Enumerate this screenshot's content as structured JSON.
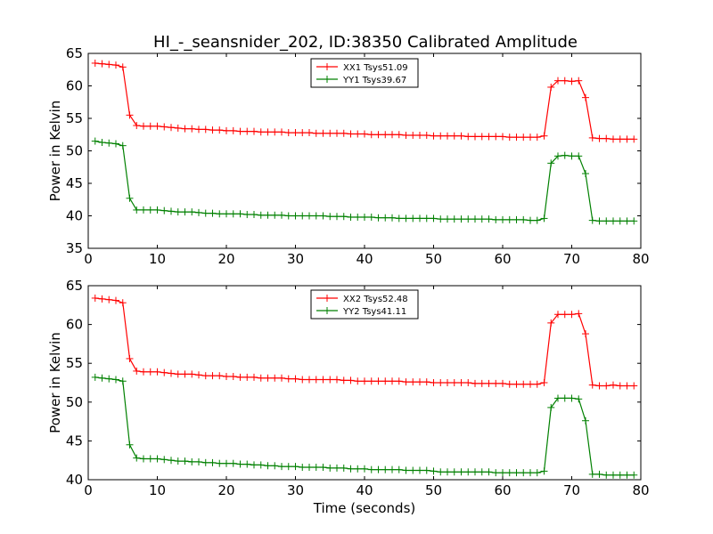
{
  "title": "HI_-_seansnider_202, ID:38350 Calibrated Amplitude",
  "chart_data": [
    {
      "type": "line",
      "xlabel": "",
      "ylabel": "Power in Kelvin",
      "xlim": [
        0,
        80
      ],
      "ylim": [
        35,
        65
      ],
      "xticks": [
        "0",
        "10",
        "20",
        "30",
        "40",
        "50",
        "60",
        "70",
        "80"
      ],
      "yticks": [
        "35",
        "40",
        "45",
        "50",
        "55",
        "60",
        "65"
      ],
      "legend_position": "top-center",
      "x": [
        1,
        2,
        3,
        4,
        5,
        6,
        7,
        8,
        9,
        10,
        11,
        12,
        13,
        14,
        15,
        16,
        17,
        18,
        19,
        20,
        21,
        22,
        23,
        24,
        25,
        26,
        27,
        28,
        29,
        30,
        31,
        32,
        33,
        34,
        35,
        36,
        37,
        38,
        39,
        40,
        41,
        42,
        43,
        44,
        45,
        46,
        47,
        48,
        49,
        50,
        51,
        52,
        53,
        54,
        55,
        56,
        57,
        58,
        59,
        60,
        61,
        62,
        63,
        64,
        65,
        66,
        67,
        68,
        69,
        70,
        71,
        72,
        73,
        74,
        75,
        76,
        77,
        78,
        79
      ],
      "series": [
        {
          "name": "XX1 Tsys51.09",
          "color": "#ff0000",
          "values": [
            63.5,
            63.4,
            63.3,
            63.2,
            62.9,
            55.5,
            53.9,
            53.8,
            53.8,
            53.8,
            53.7,
            53.6,
            53.5,
            53.4,
            53.4,
            53.3,
            53.3,
            53.2,
            53.2,
            53.1,
            53.1,
            53.0,
            53.0,
            53.0,
            52.9,
            52.9,
            52.9,
            52.9,
            52.8,
            52.8,
            52.8,
            52.8,
            52.7,
            52.7,
            52.7,
            52.7,
            52.7,
            52.6,
            52.6,
            52.6,
            52.5,
            52.5,
            52.5,
            52.5,
            52.5,
            52.4,
            52.4,
            52.4,
            52.4,
            52.3,
            52.3,
            52.3,
            52.3,
            52.3,
            52.2,
            52.2,
            52.2,
            52.2,
            52.2,
            52.2,
            52.1,
            52.1,
            52.1,
            52.1,
            52.1,
            52.3,
            59.8,
            60.8,
            60.8,
            60.7,
            60.8,
            58.2,
            52.0,
            51.9,
            51.9,
            51.8,
            51.8,
            51.8,
            51.8
          ]
        },
        {
          "name": "YY1 Tsys39.67",
          "color": "#008000",
          "values": [
            51.5,
            51.3,
            51.2,
            51.1,
            50.8,
            42.7,
            40.9,
            40.9,
            40.9,
            40.9,
            40.8,
            40.7,
            40.6,
            40.6,
            40.6,
            40.5,
            40.4,
            40.4,
            40.3,
            40.3,
            40.3,
            40.3,
            40.2,
            40.2,
            40.1,
            40.1,
            40.1,
            40.1,
            40.0,
            40.0,
            40.0,
            40.0,
            40.0,
            40.0,
            39.9,
            39.9,
            39.9,
            39.8,
            39.8,
            39.8,
            39.8,
            39.7,
            39.7,
            39.7,
            39.6,
            39.6,
            39.6,
            39.6,
            39.6,
            39.6,
            39.5,
            39.5,
            39.5,
            39.5,
            39.5,
            39.5,
            39.5,
            39.5,
            39.4,
            39.4,
            39.4,
            39.4,
            39.4,
            39.3,
            39.3,
            39.6,
            48.1,
            49.2,
            49.3,
            49.2,
            49.2,
            46.5,
            39.3,
            39.2,
            39.2,
            39.2,
            39.2,
            39.2,
            39.2
          ]
        }
      ]
    },
    {
      "type": "line",
      "xlabel": "Time (seconds)",
      "ylabel": "Power in Kelvin",
      "xlim": [
        0,
        80
      ],
      "ylim": [
        40,
        65
      ],
      "xticks": [
        "0",
        "10",
        "20",
        "30",
        "40",
        "50",
        "60",
        "70",
        "80"
      ],
      "yticks": [
        "40",
        "45",
        "50",
        "55",
        "60",
        "65"
      ],
      "legend_position": "top-center",
      "x": [
        1,
        2,
        3,
        4,
        5,
        6,
        7,
        8,
        9,
        10,
        11,
        12,
        13,
        14,
        15,
        16,
        17,
        18,
        19,
        20,
        21,
        22,
        23,
        24,
        25,
        26,
        27,
        28,
        29,
        30,
        31,
        32,
        33,
        34,
        35,
        36,
        37,
        38,
        39,
        40,
        41,
        42,
        43,
        44,
        45,
        46,
        47,
        48,
        49,
        50,
        51,
        52,
        53,
        54,
        55,
        56,
        57,
        58,
        59,
        60,
        61,
        62,
        63,
        64,
        65,
        66,
        67,
        68,
        69,
        70,
        71,
        72,
        73,
        74,
        75,
        76,
        77,
        78,
        79
      ],
      "series": [
        {
          "name": "XX2 Tsys52.48",
          "color": "#ff0000",
          "values": [
            63.4,
            63.3,
            63.2,
            63.1,
            62.8,
            55.6,
            54.0,
            53.9,
            53.9,
            53.9,
            53.8,
            53.7,
            53.6,
            53.6,
            53.6,
            53.5,
            53.4,
            53.4,
            53.4,
            53.3,
            53.3,
            53.2,
            53.2,
            53.2,
            53.1,
            53.1,
            53.1,
            53.1,
            53.0,
            53.0,
            52.9,
            52.9,
            52.9,
            52.9,
            52.9,
            52.9,
            52.8,
            52.8,
            52.7,
            52.7,
            52.7,
            52.7,
            52.7,
            52.7,
            52.7,
            52.6,
            52.6,
            52.6,
            52.6,
            52.5,
            52.5,
            52.5,
            52.5,
            52.5,
            52.5,
            52.4,
            52.4,
            52.4,
            52.4,
            52.4,
            52.3,
            52.3,
            52.3,
            52.3,
            52.3,
            52.5,
            60.2,
            61.3,
            61.3,
            61.3,
            61.4,
            58.8,
            52.2,
            52.1,
            52.1,
            52.2,
            52.1,
            52.1,
            52.1
          ]
        },
        {
          "name": "YY2 Tsys41.11",
          "color": "#008000",
          "values": [
            53.2,
            53.1,
            53.0,
            52.9,
            52.7,
            44.5,
            42.8,
            42.7,
            42.7,
            42.7,
            42.6,
            42.5,
            42.4,
            42.4,
            42.3,
            42.3,
            42.2,
            42.2,
            42.1,
            42.1,
            42.1,
            42.0,
            42.0,
            41.9,
            41.9,
            41.8,
            41.8,
            41.7,
            41.7,
            41.7,
            41.6,
            41.6,
            41.6,
            41.6,
            41.5,
            41.5,
            41.5,
            41.4,
            41.4,
            41.4,
            41.3,
            41.3,
            41.3,
            41.3,
            41.3,
            41.2,
            41.2,
            41.2,
            41.2,
            41.1,
            41.0,
            41.0,
            41.0,
            41.0,
            41.0,
            41.0,
            41.0,
            41.0,
            40.9,
            40.9,
            40.9,
            40.9,
            40.9,
            40.9,
            40.9,
            41.1,
            49.3,
            50.5,
            50.5,
            50.5,
            50.4,
            47.6,
            40.7,
            40.7,
            40.6,
            40.6,
            40.6,
            40.6,
            40.6
          ]
        }
      ]
    }
  ]
}
